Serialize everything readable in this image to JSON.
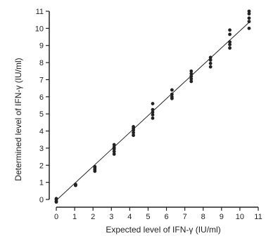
{
  "chart_data": {
    "type": "scatter",
    "title": "",
    "xlabel": "Expected level of IFN-γ (IU/ml)",
    "ylabel": "Determined level of IFN-γ  (IU/ml)",
    "xlim": [
      0,
      11
    ],
    "ylim": [
      0,
      11
    ],
    "xticks": [
      "0",
      "1",
      "2",
      "3",
      "4",
      "5",
      "6",
      "7",
      "8",
      "9",
      "10",
      "11"
    ],
    "yticks": [
      "0",
      "1",
      "2",
      "3",
      "4",
      "5",
      "6",
      "7",
      "8",
      "9",
      "10",
      "11"
    ],
    "grid": false,
    "legend": "none",
    "fit_line": {
      "x": [
        0,
        10.5
      ],
      "y": [
        -0.05,
        10.35
      ]
    },
    "points": [
      {
        "x": 0,
        "y": 0.0
      },
      {
        "x": 0,
        "y": -0.1
      },
      {
        "x": 0,
        "y": -0.15
      },
      {
        "x": 0,
        "y": 0.05
      },
      {
        "x": 1.05,
        "y": 0.82
      },
      {
        "x": 1.05,
        "y": 0.85
      },
      {
        "x": 1.05,
        "y": 0.88
      },
      {
        "x": 2.1,
        "y": 1.65
      },
      {
        "x": 2.1,
        "y": 1.75
      },
      {
        "x": 2.1,
        "y": 1.85
      },
      {
        "x": 2.1,
        "y": 1.92
      },
      {
        "x": 3.15,
        "y": 2.65
      },
      {
        "x": 3.15,
        "y": 2.8
      },
      {
        "x": 3.15,
        "y": 2.95
      },
      {
        "x": 3.15,
        "y": 3.05
      },
      {
        "x": 3.15,
        "y": 3.2
      },
      {
        "x": 4.2,
        "y": 3.75
      },
      {
        "x": 4.2,
        "y": 3.9
      },
      {
        "x": 4.2,
        "y": 4.05
      },
      {
        "x": 4.2,
        "y": 4.15
      },
      {
        "x": 4.2,
        "y": 4.25
      },
      {
        "x": 5.25,
        "y": 4.75
      },
      {
        "x": 5.25,
        "y": 4.95
      },
      {
        "x": 5.25,
        "y": 5.1
      },
      {
        "x": 5.25,
        "y": 5.25
      },
      {
        "x": 5.25,
        "y": 5.6
      },
      {
        "x": 6.3,
        "y": 5.9
      },
      {
        "x": 6.3,
        "y": 6.0
      },
      {
        "x": 6.3,
        "y": 6.15
      },
      {
        "x": 6.3,
        "y": 6.4
      },
      {
        "x": 7.35,
        "y": 6.9
      },
      {
        "x": 7.35,
        "y": 7.05
      },
      {
        "x": 7.35,
        "y": 7.2
      },
      {
        "x": 7.35,
        "y": 7.35
      },
      {
        "x": 7.35,
        "y": 7.5
      },
      {
        "x": 8.4,
        "y": 7.75
      },
      {
        "x": 8.4,
        "y": 7.95
      },
      {
        "x": 8.4,
        "y": 8.15
      },
      {
        "x": 8.4,
        "y": 8.3
      },
      {
        "x": 9.45,
        "y": 8.85
      },
      {
        "x": 9.45,
        "y": 9.05
      },
      {
        "x": 9.45,
        "y": 9.2
      },
      {
        "x": 9.45,
        "y": 9.65
      },
      {
        "x": 9.45,
        "y": 9.9
      },
      {
        "x": 10.5,
        "y": 10.0
      },
      {
        "x": 10.5,
        "y": 10.4
      },
      {
        "x": 10.5,
        "y": 10.6
      },
      {
        "x": 10.5,
        "y": 10.85
      },
      {
        "x": 10.5,
        "y": 11.0
      }
    ]
  }
}
